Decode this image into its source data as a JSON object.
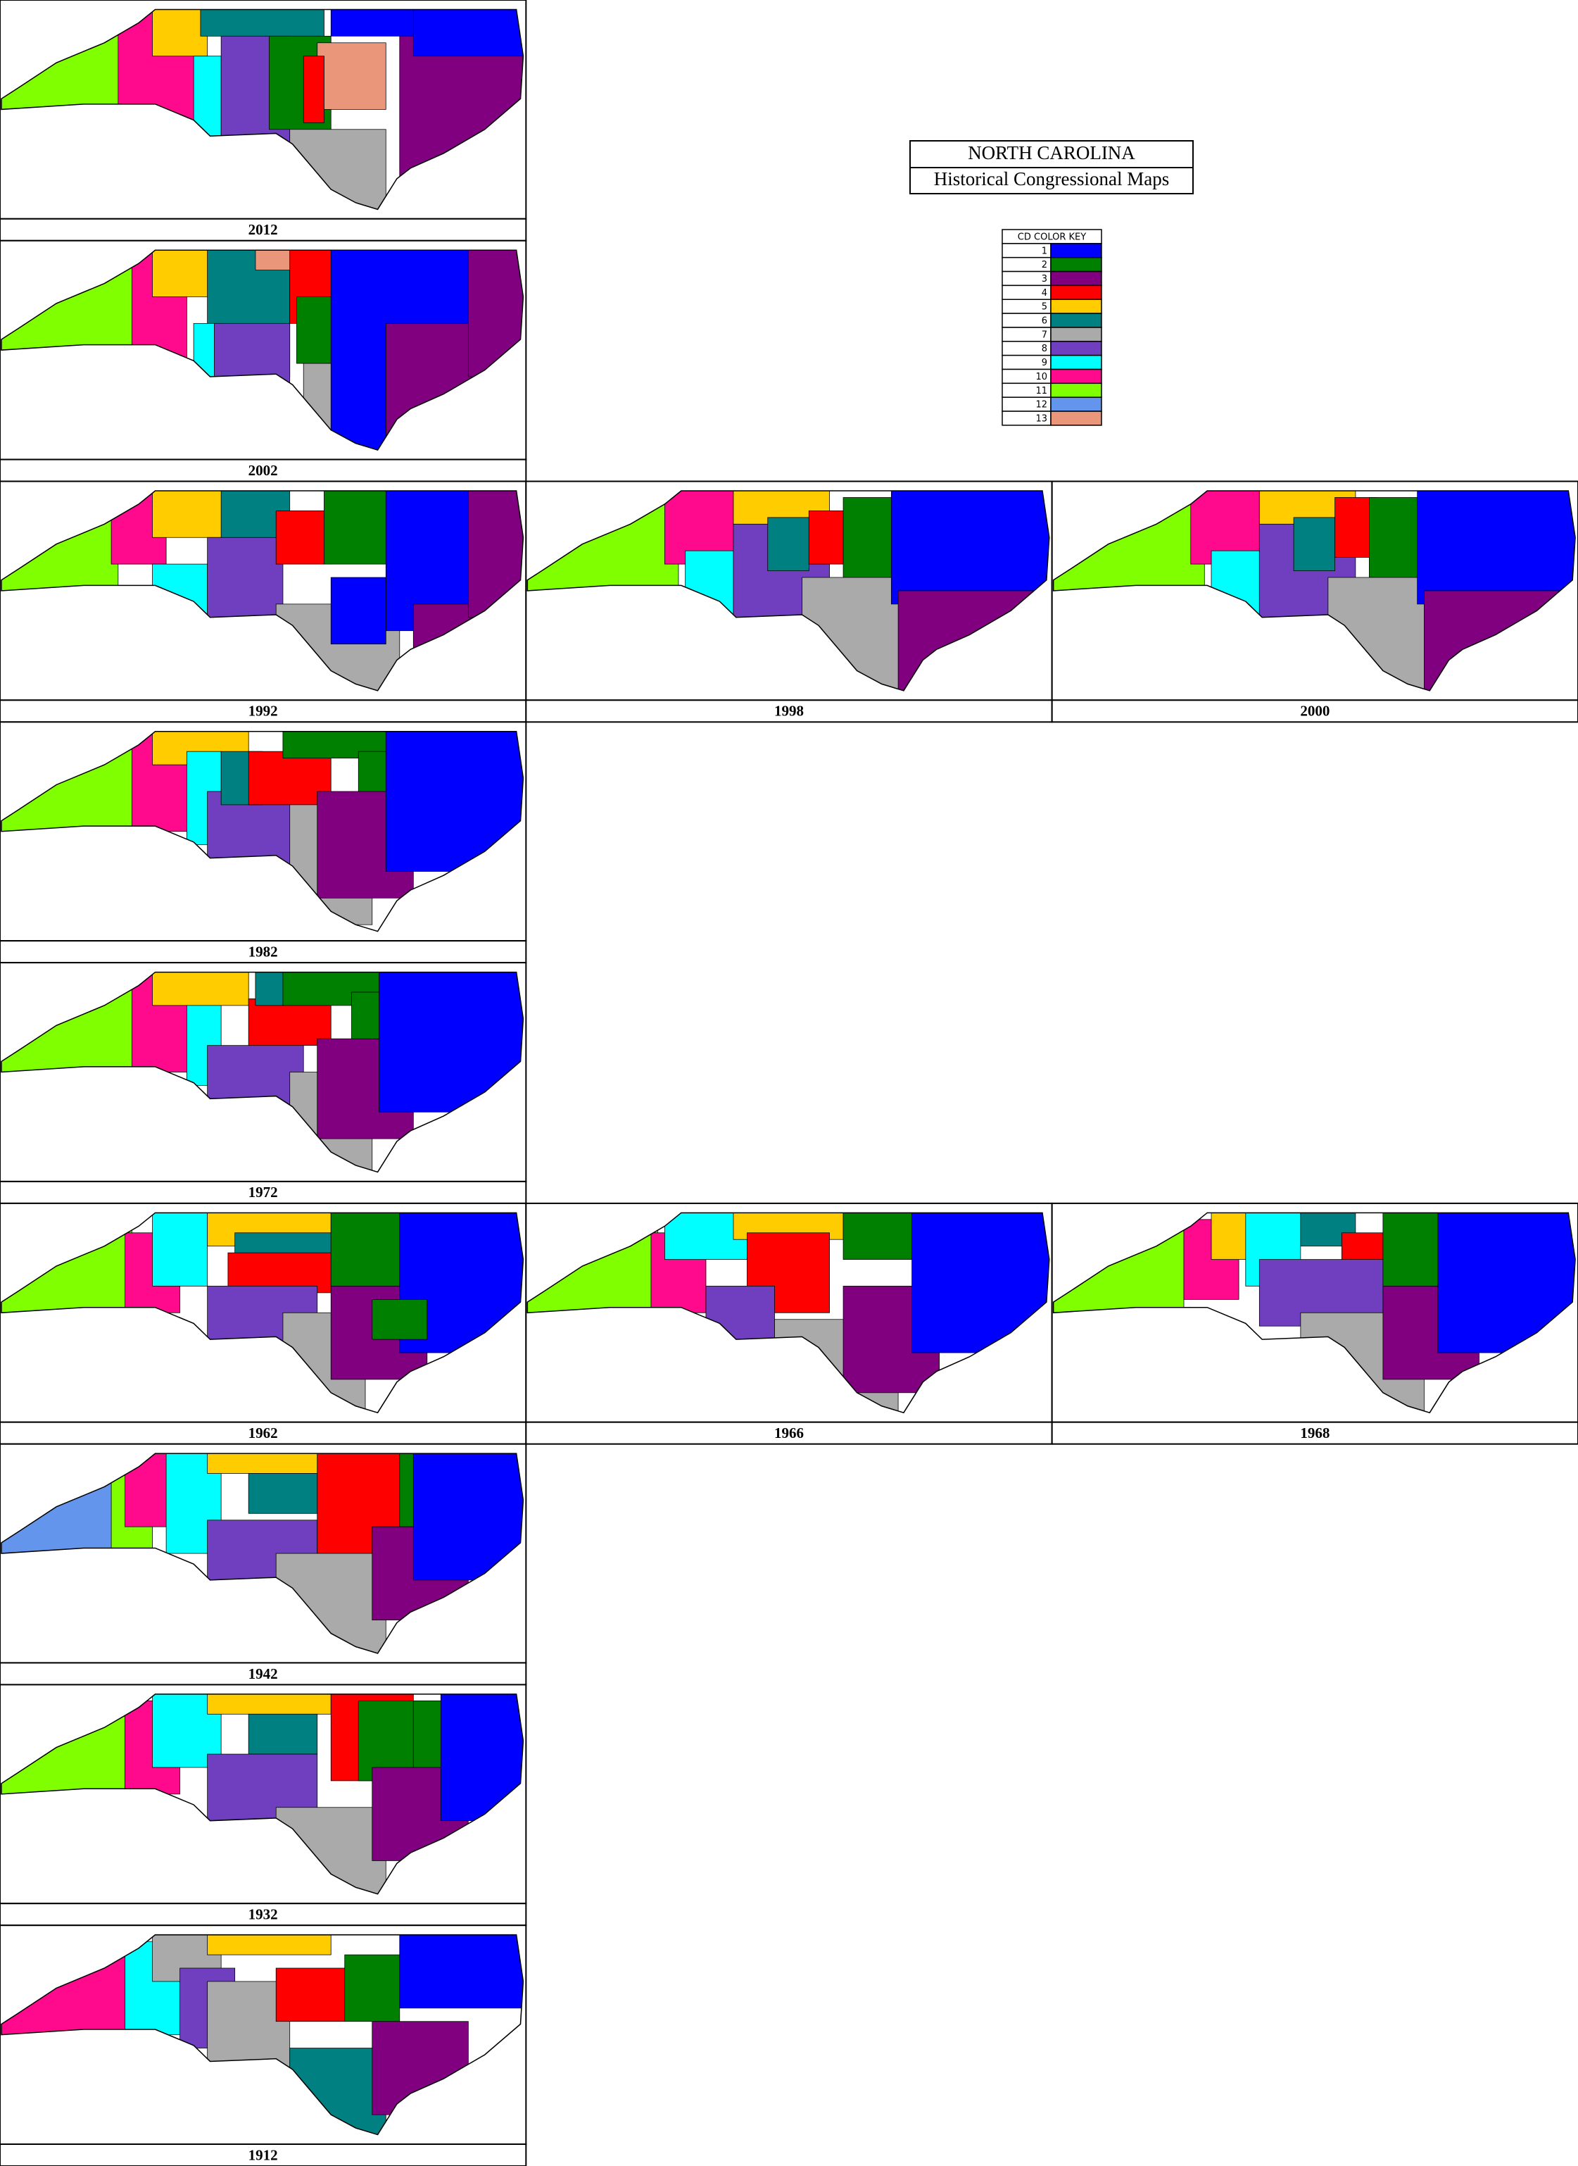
{
  "header": {
    "title": "NORTH CAROLINA",
    "subtitle": "Historical Congressional Maps"
  },
  "key": {
    "title": "CD COLOR KEY",
    "entries": [
      {
        "number": 1,
        "color": "#0000ff"
      },
      {
        "number": 2,
        "color": "#008000"
      },
      {
        "number": 3,
        "color": "#800080"
      },
      {
        "number": 4,
        "color": "#ff0000"
      },
      {
        "number": 5,
        "color": "#ffcc00"
      },
      {
        "number": 6,
        "color": "#008080"
      },
      {
        "number": 7,
        "color": "#aaaaaa"
      },
      {
        "number": 8,
        "color": "#6f3fc0"
      },
      {
        "number": 9,
        "color": "#00ffff"
      },
      {
        "number": 10,
        "color": "#ff0a8c"
      },
      {
        "number": 11,
        "color": "#80ff00"
      },
      {
        "number": 12,
        "color": "#6495ed"
      },
      {
        "number": 13,
        "color": "#e9967a"
      }
    ]
  },
  "maps": [
    {
      "year": 2012
    },
    {
      "year": 2002
    },
    {
      "year": 1992
    },
    {
      "year": 1998
    },
    {
      "year": 2000
    },
    {
      "year": 1982
    },
    {
      "year": 1972
    },
    {
      "year": 1962
    },
    {
      "year": 1966
    },
    {
      "year": 1968
    },
    {
      "year": 1942
    },
    {
      "year": 1932
    },
    {
      "year": 1912
    }
  ]
}
